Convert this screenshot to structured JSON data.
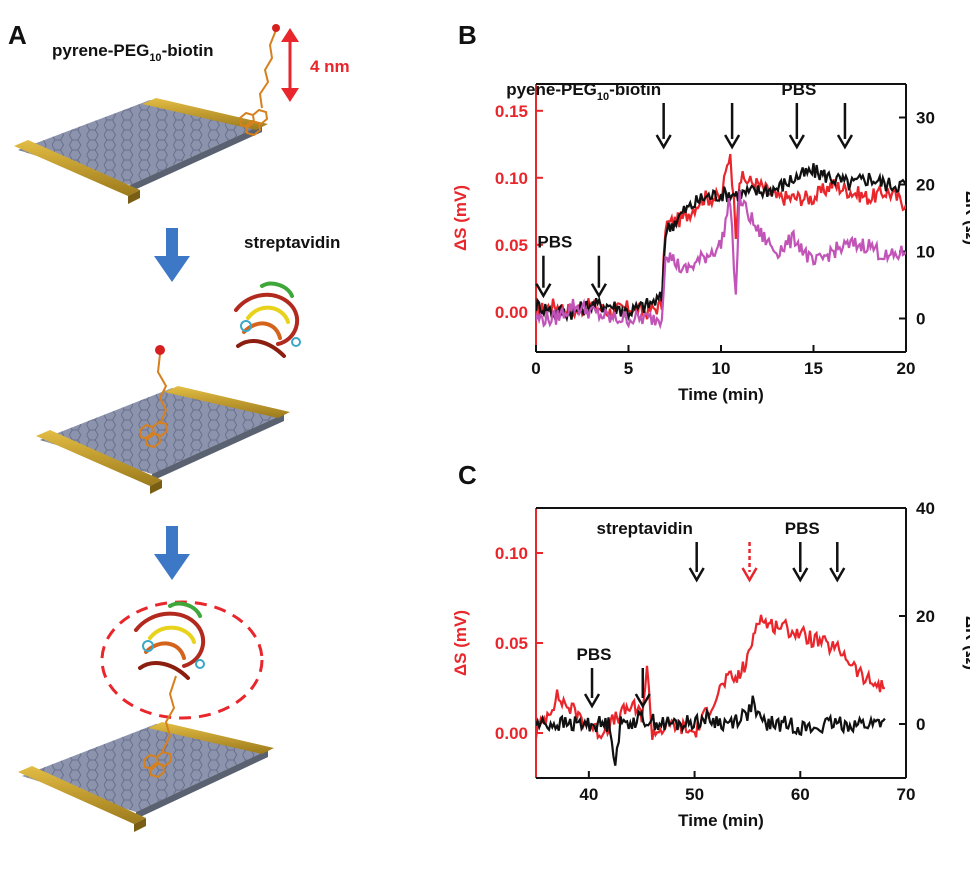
{
  "panels": {
    "a": "A",
    "b": "B",
    "c": "C"
  },
  "schematic": {
    "molecule_label_prefix": "pyrene-PEG",
    "molecule_label_sub": "10",
    "molecule_label_suffix": "-biotin",
    "length_label": "4 nm",
    "protein_label": "streptavidin",
    "colors": {
      "red": "#e8262c",
      "electrode": "#c9a22c",
      "graphene": "#8c93ad",
      "arrow": "#3d78c6",
      "linker": "#d6801e"
    }
  },
  "chart_data": [
    {
      "id": "B",
      "type": "line",
      "xlabel": "Time (min)",
      "ylabel": "ΔS (mV)",
      "y2label": "ΔR (Ω)",
      "xlim": [
        0,
        20
      ],
      "ylim": [
        -0.03,
        0.17
      ],
      "y2lim": [
        -5,
        35
      ],
      "xticks": [
        0,
        5,
        10,
        15,
        20
      ],
      "yticks": [
        0.0,
        0.05,
        0.1,
        0.15
      ],
      "ytick_labels": [
        "0.00",
        "0.05",
        "0.10",
        "0.15"
      ],
      "y2ticks": [
        0,
        10,
        20,
        30
      ],
      "grid": false,
      "series": [
        {
          "axis": "y",
          "color": "#e8262c",
          "x": [
            0,
            1,
            2,
            3,
            4,
            5,
            6,
            6.8,
            7,
            8,
            9,
            10,
            10.5,
            10.8,
            11,
            12,
            13,
            14,
            15,
            16,
            17,
            18,
            19,
            20
          ],
          "y": [
            0.0,
            0.005,
            0.0,
            0.005,
            0.0,
            0.003,
            0.0,
            0.005,
            0.065,
            0.07,
            0.085,
            0.085,
            0.12,
            0.06,
            0.1,
            0.095,
            0.085,
            0.085,
            0.085,
            0.095,
            0.09,
            0.085,
            0.09,
            0.08
          ]
        },
        {
          "axis": "y",
          "color": "#111111",
          "x": [
            0,
            1,
            2,
            3,
            4,
            5,
            6,
            6.8,
            7,
            8,
            9,
            10,
            11,
            12,
            13,
            14,
            15,
            16,
            17,
            18,
            19,
            20
          ],
          "y": [
            0.005,
            0.0,
            0.0,
            0.005,
            0.005,
            0.0,
            0.005,
            0.01,
            0.06,
            0.075,
            0.085,
            0.088,
            0.088,
            0.09,
            0.092,
            0.1,
            0.105,
            0.1,
            0.095,
            0.1,
            0.095,
            0.095
          ]
        },
        {
          "axis": "y2",
          "color": "#c254b8",
          "x": [
            0,
            1,
            2,
            3,
            4,
            5,
            6,
            6.8,
            7,
            8,
            9,
            10,
            10.5,
            10.8,
            11,
            12,
            13,
            14,
            15,
            16,
            17,
            18,
            19,
            20
          ],
          "y": [
            0,
            0,
            2,
            1,
            0,
            0,
            0,
            0,
            10,
            7,
            9,
            11,
            18,
            3,
            18,
            13,
            10,
            12,
            8,
            10,
            11,
            11,
            9,
            10
          ]
        }
      ],
      "annotations": [
        {
          "text": "PBS",
          "x": 0.4
        },
        {
          "text": "",
          "x": 3.4
        },
        {
          "text": "pyene-PEG",
          "sub": "10",
          "suffix": "-biotin",
          "x": 6.9
        },
        {
          "text": "",
          "x": 10.6
        },
        {
          "text": "PBS",
          "x": 14.1
        },
        {
          "text": "",
          "x": 16.7
        }
      ]
    },
    {
      "id": "C",
      "type": "line",
      "xlabel": "Time (min)",
      "ylabel": "ΔS (mV)",
      "y2label": "ΔR (Ω)",
      "xlim": [
        35,
        70
      ],
      "ylim": [
        -0.025,
        0.125
      ],
      "y2lim": [
        -10,
        40
      ],
      "xticks": [
        40,
        50,
        60,
        70
      ],
      "yticks": [
        0.0,
        0.05,
        0.1
      ],
      "ytick_labels": [
        "0.00",
        "0.05",
        "0.10"
      ],
      "y2ticks": [
        0,
        20,
        40
      ],
      "grid": false,
      "series": [
        {
          "axis": "y",
          "color": "#e8262c",
          "x": [
            35,
            37,
            39,
            41,
            43,
            44,
            45,
            45.5,
            46,
            48,
            50,
            51,
            53,
            54,
            55,
            56,
            57,
            58,
            60,
            62,
            64,
            66,
            68
          ],
          "y": [
            0.0,
            0.02,
            0.01,
            0.0,
            0.01,
            0.015,
            0.01,
            0.035,
            0.0,
            0.005,
            0.0,
            0.01,
            0.03,
            0.03,
            0.04,
            0.065,
            0.06,
            0.06,
            0.055,
            0.05,
            0.045,
            0.03,
            0.025
          ]
        },
        {
          "axis": "y2",
          "color": "#111111",
          "x": [
            35,
            37,
            39,
            41,
            42,
            42.5,
            43,
            45,
            47,
            49,
            51,
            53,
            55,
            55.5,
            56,
            57,
            59,
            61,
            63,
            65,
            67,
            68
          ],
          "y": [
            0,
            0,
            0,
            0,
            0,
            -7,
            0,
            1,
            0,
            0,
            1,
            0,
            2,
            4,
            1,
            0,
            0,
            -1,
            0,
            0,
            0,
            1
          ]
        }
      ],
      "annotations": [
        {
          "text": "PBS",
          "x": 40.3
        },
        {
          "text": "",
          "x": 45.1
        },
        {
          "text": "streptavidin",
          "x": 50.2
        },
        {
          "text": "",
          "x": 55.2,
          "style": "dotted-red"
        },
        {
          "text": "PBS",
          "x": 60.0
        },
        {
          "text": "",
          "x": 63.5
        }
      ]
    }
  ]
}
